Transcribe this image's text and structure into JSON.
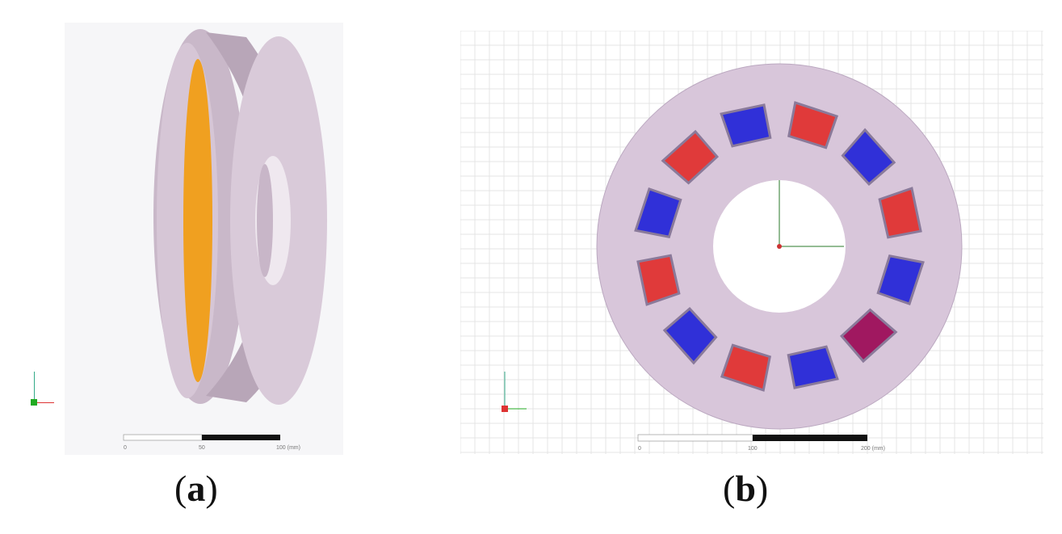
{
  "panels": [
    {
      "id": "a",
      "caption_open": "(",
      "caption_letter": "a",
      "caption_close": ")",
      "scale_ticks": [
        "0",
        "50",
        "100 (mm)"
      ]
    },
    {
      "id": "b",
      "caption_open": "(",
      "caption_letter": "b",
      "caption_close": ")",
      "scale_ticks": [
        "0",
        "100",
        "200 (mm)"
      ]
    }
  ],
  "magnets": {
    "count": 12,
    "colors": [
      "#3030d8",
      "#e03a3a",
      "#3030d8",
      "#e03a3a",
      "#3030d8",
      "#a01860",
      "#3030d8",
      "#e03a3a",
      "#3030d8",
      "#e03a3a",
      "#3030d8",
      "#e03a3a"
    ]
  },
  "colors": {
    "body": "#d8c8d8",
    "coil": "#f0a020",
    "grid": "#e4e4e4"
  }
}
